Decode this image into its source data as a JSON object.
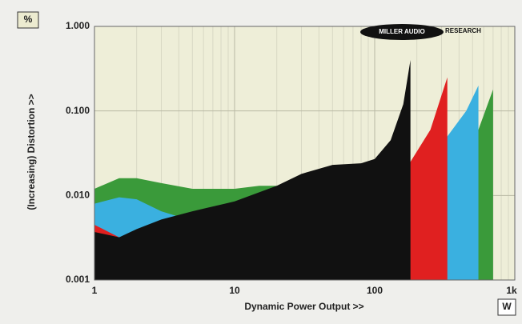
{
  "chart_data": {
    "type": "area",
    "x_label": "Dynamic Power Output >>",
    "y_label": "(Increasing) Distortion >>",
    "y_unit": "%",
    "x_unit": "W",
    "annotations": [
      "MILLER AUDIO",
      "RESEARCH"
    ],
    "xlog": true,
    "ylog": true,
    "grid": true,
    "xlim": [
      1,
      1000
    ],
    "ylim": [
      0.001,
      1
    ],
    "xticks": [
      1,
      10,
      100,
      {
        "value": 1000,
        "label": "1k"
      }
    ],
    "yticks": [
      {
        "value": 0.001,
        "label": "0.001"
      },
      {
        "value": 0.01,
        "label": "0.010"
      },
      {
        "value": 0.1,
        "label": "0.100"
      },
      {
        "value": 1,
        "label": "1.000"
      }
    ],
    "series": [
      {
        "color": "#3a9a3a",
        "x": [
          1,
          1.5,
          2,
          3,
          5,
          10,
          15,
          20,
          100,
          180,
          330,
          550,
          700
        ],
        "values": [
          0.012,
          0.016,
          0.016,
          0.014,
          0.012,
          0.012,
          0.013,
          0.013,
          0.02,
          0.022,
          0.04,
          0.06,
          0.18
        ]
      },
      {
        "color": "#3ab0e0",
        "x": [
          1,
          1.5,
          2,
          3,
          5,
          10,
          100,
          180,
          330,
          450,
          550
        ],
        "values": [
          0.008,
          0.0095,
          0.009,
          0.0065,
          0.005,
          0.006,
          0.015,
          0.02,
          0.05,
          0.1,
          0.2
        ]
      },
      {
        "color": "#e02020",
        "x": [
          1,
          1.5,
          2,
          180,
          250,
          330
        ],
        "values": [
          0.0045,
          0.0032,
          0.0035,
          0.025,
          0.06,
          0.25
        ]
      },
      {
        "color": "#111111",
        "x": [
          1,
          1.5,
          2,
          3,
          5,
          10,
          20,
          30,
          50,
          80,
          100,
          130,
          160,
          180
        ],
        "values": [
          0.0037,
          0.0032,
          0.004,
          0.0052,
          0.0065,
          0.0085,
          0.013,
          0.018,
          0.023,
          0.024,
          0.027,
          0.045,
          0.12,
          0.4
        ]
      }
    ]
  }
}
